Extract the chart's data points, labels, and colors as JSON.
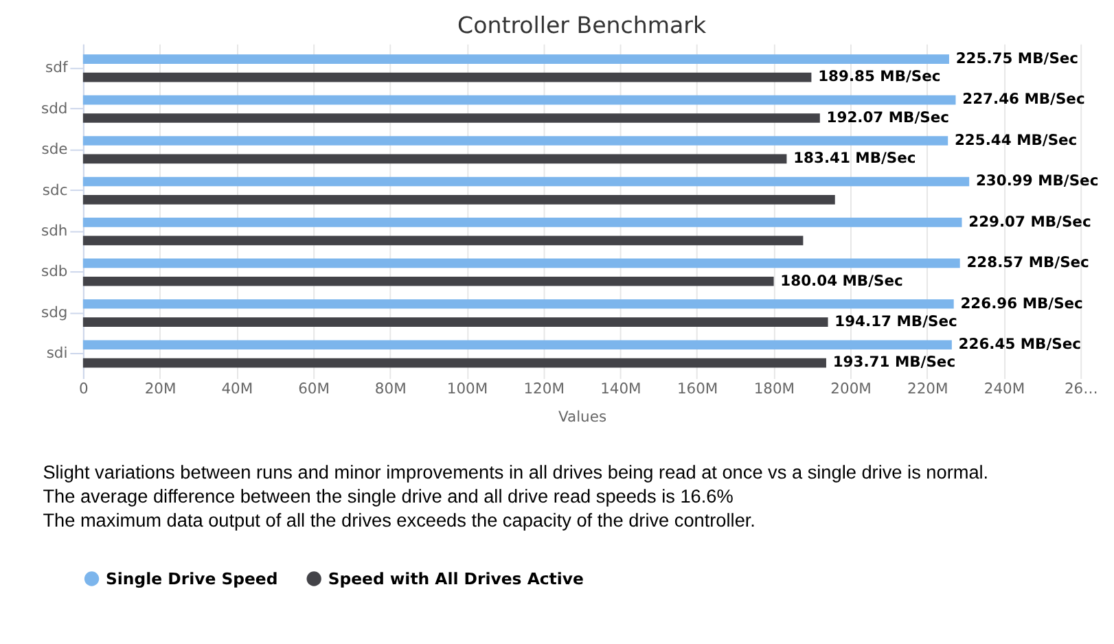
{
  "chart_data": {
    "type": "bar",
    "orientation": "horizontal",
    "title": "Controller Benchmark",
    "xlabel": "Values",
    "categories": [
      "sdf",
      "sdd",
      "sde",
      "sdc",
      "sdh",
      "sdb",
      "sdg",
      "sdi"
    ],
    "series": [
      {
        "name": "Single Drive Speed",
        "color": "#7cb5ec",
        "values": [
          225.75,
          227.46,
          225.44,
          230.99,
          229.07,
          228.57,
          226.96,
          226.45
        ],
        "value_labels": [
          "225.75 MB/Sec",
          "227.46 MB/Sec",
          "225.44 MB/Sec",
          "230.99 MB/Sec",
          "229.07 MB/Sec",
          "228.57 MB/Sec",
          "226.96 MB/Sec",
          "226.45 MB/Sec"
        ]
      },
      {
        "name": "Speed with All Drives Active",
        "color": "#434348",
        "values": [
          189.85,
          192.07,
          183.41,
          196.0,
          187.7,
          180.04,
          194.17,
          193.71
        ],
        "value_labels": [
          "189.85 MB/Sec",
          "192.07 MB/Sec",
          "183.41 MB/Sec",
          null,
          null,
          "180.04 MB/Sec",
          "194.17 MB/Sec",
          "193.71 MB/Sec"
        ]
      }
    ],
    "xlim": [
      0,
      260
    ],
    "xticks": [
      0,
      {
        "value": 20,
        "label": "20M"
      },
      {
        "value": 40,
        "label": "40M"
      },
      {
        "value": 60,
        "label": "60M"
      },
      {
        "value": 80,
        "label": "80M"
      },
      {
        "value": 100,
        "label": "100M"
      },
      {
        "value": 120,
        "label": "120M"
      },
      {
        "value": 140,
        "label": "140M"
      },
      {
        "value": 160,
        "label": "160M"
      },
      {
        "value": 180,
        "label": "180M"
      },
      {
        "value": 200,
        "label": "200M"
      },
      {
        "value": 220,
        "label": "220M"
      },
      {
        "value": 240,
        "label": "240M"
      },
      {
        "value": 260,
        "label": "26…"
      }
    ],
    "grid": "x",
    "legend": "bottom",
    "annotations": [
      "Slight variations between runs and minor improvements in all drives being read at once vs a single drive is normal.",
      "The average difference between the single drive and all drive read speeds is 16.6%",
      "The maximum data output of all the drives exceeds the capacity of the drive controller."
    ]
  }
}
